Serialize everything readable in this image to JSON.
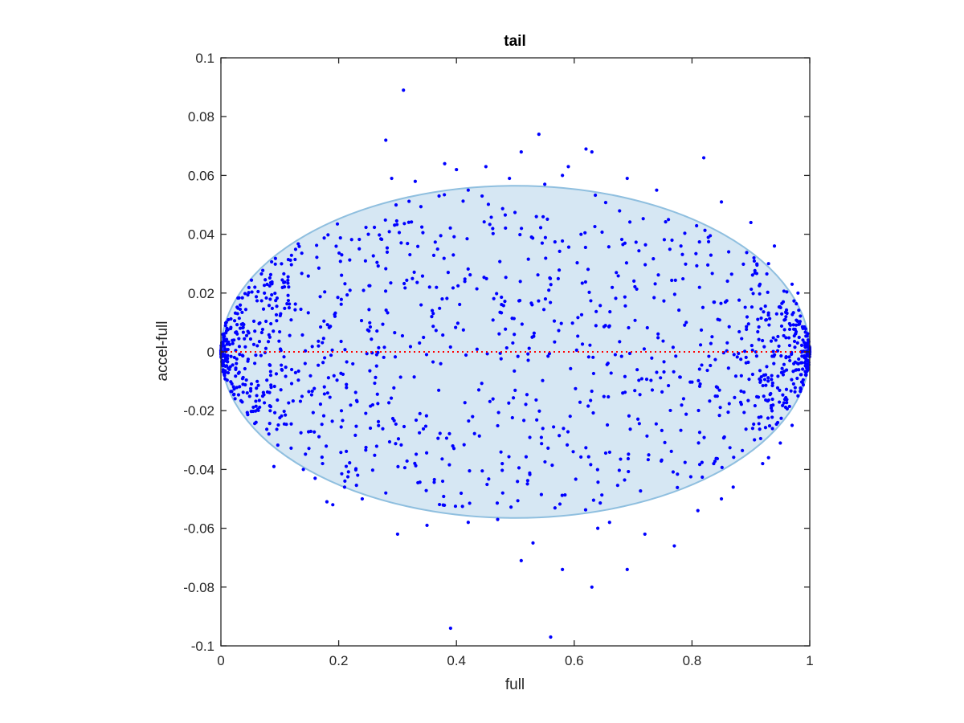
{
  "chart_data": {
    "type": "scatter",
    "title": "tail",
    "xlabel": "full",
    "ylabel": "accel-full",
    "xlim": [
      0,
      1
    ],
    "ylim": [
      -0.1,
      0.1
    ],
    "x_ticks": [
      0,
      0.2,
      0.4,
      0.6,
      0.8,
      1
    ],
    "x_tick_labels": [
      "0",
      "0.2",
      "0.4",
      "0.6",
      "0.8",
      "1"
    ],
    "y_ticks": [
      -0.1,
      -0.08,
      -0.06,
      -0.04,
      -0.02,
      0,
      0.02,
      0.04,
      0.06,
      0.08,
      0.1
    ],
    "y_tick_labels": [
      "-0.1",
      "-0.08",
      "-0.06",
      "-0.04",
      "-0.02",
      "0",
      "0.02",
      "0.04",
      "0.06",
      "0.08",
      "0.1"
    ],
    "grid": false,
    "reference_line": {
      "y": 0,
      "style": "dotted",
      "color": "#ff0000"
    },
    "region": {
      "shape": "ellipse",
      "center": [
        0.5,
        0.0
      ],
      "semi_axes": [
        0.5,
        0.0565
      ],
      "fill": "#d6e7f3",
      "edge": "#8fbfdf"
    },
    "point_color": "#0000ff",
    "points": [
      [
        0.31,
        0.089
      ],
      [
        0.28,
        0.072
      ],
      [
        0.54,
        0.074
      ],
      [
        0.62,
        0.069
      ],
      [
        0.63,
        0.068
      ],
      [
        0.82,
        0.066
      ],
      [
        0.51,
        0.068
      ],
      [
        0.29,
        0.059
      ],
      [
        0.38,
        0.064
      ],
      [
        0.45,
        0.063
      ],
      [
        0.49,
        0.059
      ],
      [
        0.55,
        0.057
      ],
      [
        0.59,
        0.063
      ],
      [
        0.69,
        0.059
      ],
      [
        0.74,
        0.055
      ],
      [
        0.85,
        0.051
      ],
      [
        0.33,
        0.058
      ],
      [
        0.4,
        0.062
      ],
      [
        0.58,
        0.06
      ],
      [
        0.42,
        0.055
      ],
      [
        0.94,
        0.036
      ],
      [
        0.9,
        0.044
      ],
      [
        0.93,
        0.03
      ],
      [
        0.97,
        0.023
      ],
      [
        0.76,
        0.045
      ],
      [
        0.98,
        0.02
      ],
      [
        0.39,
        -0.094
      ],
      [
        0.56,
        -0.097
      ],
      [
        0.63,
        -0.08
      ],
      [
        0.58,
        -0.074
      ],
      [
        0.69,
        -0.074
      ],
      [
        0.51,
        -0.071
      ],
      [
        0.77,
        -0.066
      ],
      [
        0.53,
        -0.065
      ],
      [
        0.3,
        -0.062
      ],
      [
        0.72,
        -0.062
      ],
      [
        0.64,
        -0.06
      ],
      [
        0.66,
        -0.058
      ],
      [
        0.81,
        -0.054
      ],
      [
        0.85,
        -0.05
      ],
      [
        0.87,
        -0.046
      ],
      [
        0.18,
        -0.051
      ],
      [
        0.19,
        -0.052
      ],
      [
        0.09,
        -0.039
      ],
      [
        0.14,
        -0.04
      ],
      [
        0.16,
        -0.043
      ],
      [
        0.93,
        -0.036
      ],
      [
        0.95,
        -0.031
      ],
      [
        0.98,
        -0.015
      ],
      [
        0.97,
        -0.025
      ],
      [
        0.35,
        -0.059
      ],
      [
        0.21,
        -0.046
      ],
      [
        0.24,
        -0.05
      ],
      [
        0.28,
        -0.048
      ],
      [
        0.92,
        -0.038
      ],
      [
        0.42,
        -0.058
      ],
      [
        0.47,
        -0.057
      ]
    ],
    "random_fill": {
      "count": 1300,
      "seed": 7,
      "distribution": "uniform-in-ellipse, denser near x=0 and x=1"
    }
  }
}
